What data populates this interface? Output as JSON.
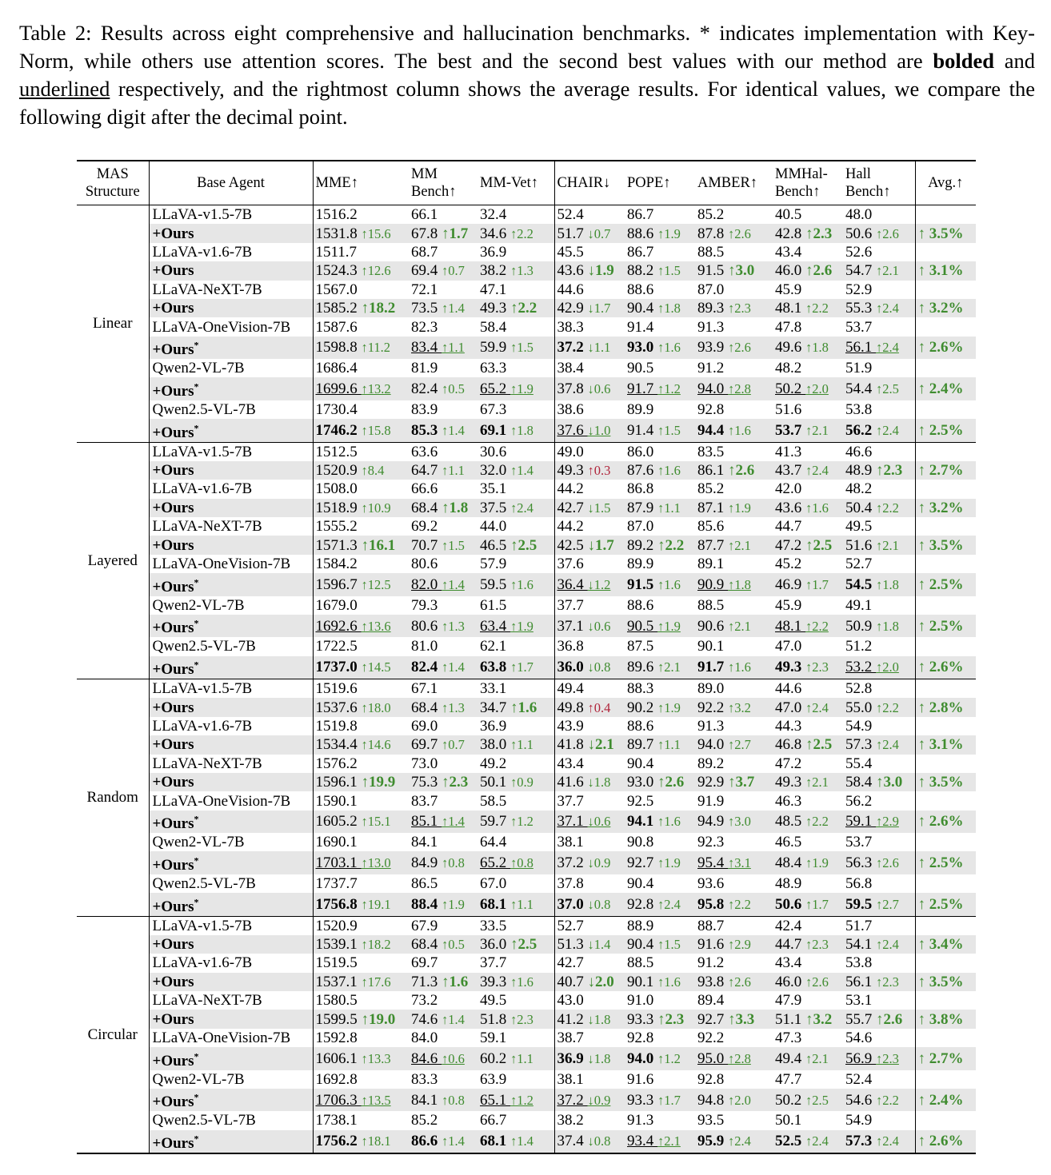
{
  "caption": {
    "part1": "Table 2: Results across eight comprehensive and hallucination benchmarks. * indicates implementation with Key-Norm, while others use attention scores. The best and the second best values with our method are ",
    "bolded": "bolded",
    "part2": " and ",
    "underlined": "underlined",
    "part3": " respectively, and the rightmost column shows the average results. For identical values, we compare the following digit after the decimal point."
  },
  "headers": [
    "MAS Structure",
    "Base Agent",
    "MME↑",
    "MM Bench↑",
    "MM-Vet↑",
    "CHAIR↓",
    "POPE↑",
    "AMBER↑",
    "MMHal-Bench↑",
    "Hall Bench↑",
    "Avg.↑"
  ],
  "groups": [
    {
      "structure": "Linear",
      "rows": [
        {
          "agent": "LLaVA-v1.5-7B",
          "vals": [
            "1516.2",
            "66.1",
            "32.4",
            "52.4",
            "86.7",
            "85.2",
            "40.5",
            "48.0"
          ],
          "avg": ""
        },
        {
          "agent": "+Ours",
          "vals": [
            "1531.8 ↑15.6",
            "67.8 ↑1.7",
            "34.6 ↑2.2",
            "51.7 ↓0.7",
            "88.6 ↑1.9",
            "87.8 ↑2.6",
            "42.8 ↑2.3",
            "50.6 ↑2.6"
          ],
          "avg": "↑ 3.5%"
        },
        {
          "agent": "LLaVA-v1.6-7B",
          "vals": [
            "1511.7",
            "68.7",
            "36.9",
            "45.5",
            "86.7",
            "88.5",
            "43.4",
            "52.6"
          ],
          "avg": ""
        },
        {
          "agent": "+Ours",
          "vals": [
            "1524.3 ↑12.6",
            "69.4 ↑0.7",
            "38.2 ↑1.3",
            "43.6 ↓1.9",
            "88.2 ↑1.5",
            "91.5 ↑3.0",
            "46.0 ↑2.6",
            "54.7 ↑2.1"
          ],
          "avg": "↑ 3.1%"
        },
        {
          "agent": "LLaVA-NeXT-7B",
          "vals": [
            "1567.0",
            "72.1",
            "47.1",
            "44.6",
            "88.6",
            "87.0",
            "45.9",
            "52.9"
          ],
          "avg": ""
        },
        {
          "agent": "+Ours",
          "vals": [
            "1585.2 ↑18.2",
            "73.5 ↑1.4",
            "49.3 ↑2.2",
            "42.9 ↓1.7",
            "90.4 ↑1.8",
            "89.3 ↑2.3",
            "48.1 ↑2.2",
            "55.3 ↑2.4"
          ],
          "avg": "↑ 3.2%"
        },
        {
          "agent": "LLaVA-OneVision-7B",
          "vals": [
            "1587.6",
            "82.3",
            "58.4",
            "38.3",
            "91.4",
            "91.3",
            "47.8",
            "53.7"
          ],
          "avg": ""
        },
        {
          "agent": "+Ours*",
          "vals": [
            "1598.8 ↑11.2",
            "83.4 ↑1.1",
            "59.9 ↑1.5",
            "37.2 ↓1.1",
            "93.0 ↑1.6",
            "93.9 ↑2.6",
            "49.6 ↑1.8",
            "56.1 ↑2.4"
          ],
          "avg": "↑ 2.6%"
        },
        {
          "agent": "Qwen2-VL-7B",
          "vals": [
            "1686.4",
            "81.9",
            "63.3",
            "38.4",
            "90.5",
            "91.2",
            "48.2",
            "51.9"
          ],
          "avg": ""
        },
        {
          "agent": "+Ours*",
          "vals": [
            "1699.6 ↑13.2",
            "82.4 ↑0.5",
            "65.2 ↑1.9",
            "37.8 ↓0.6",
            "91.7 ↑1.2",
            "94.0 ↑2.8",
            "50.2 ↑2.0",
            "54.4 ↑2.5"
          ],
          "avg": "↑ 2.4%"
        },
        {
          "agent": "Qwen2.5-VL-7B",
          "vals": [
            "1730.4",
            "83.9",
            "67.3",
            "38.6",
            "89.9",
            "92.8",
            "51.6",
            "53.8"
          ],
          "avg": ""
        },
        {
          "agent": "+Ours*",
          "vals": [
            "1746.2 ↑15.8",
            "85.3 ↑1.4",
            "69.1 ↑1.8",
            "37.6 ↓1.0",
            "91.4 ↑1.5",
            "94.4 ↑1.6",
            "53.7 ↑2.1",
            "56.2 ↑2.4"
          ],
          "avg": "↑ 2.5%"
        }
      ]
    },
    {
      "structure": "Layered",
      "rows": [
        {
          "agent": "LLaVA-v1.5-7B",
          "vals": [
            "1512.5",
            "63.6",
            "30.6",
            "49.0",
            "86.0",
            "83.5",
            "41.3",
            "46.6"
          ],
          "avg": ""
        },
        {
          "agent": "+Ours",
          "vals": [
            "1520.9 ↑8.4",
            "64.7 ↑1.1",
            "32.0 ↑1.4",
            "49.3 ↑0.3",
            "87.6 ↑1.6",
            "86.1 ↑2.6",
            "43.7 ↑2.4",
            "48.9 ↑2.3"
          ],
          "avg": "↑ 2.7%"
        },
        {
          "agent": "LLaVA-v1.6-7B",
          "vals": [
            "1508.0",
            "66.6",
            "35.1",
            "44.2",
            "86.8",
            "85.2",
            "42.0",
            "48.2"
          ],
          "avg": ""
        },
        {
          "agent": "+Ours",
          "vals": [
            "1518.9 ↑10.9",
            "68.4 ↑1.8",
            "37.5 ↑2.4",
            "42.7 ↓1.5",
            "87.9 ↑1.1",
            "87.1 ↑1.9",
            "43.6 ↑1.6",
            "50.4 ↑2.2"
          ],
          "avg": "↑ 3.2%"
        },
        {
          "agent": "LLaVA-NeXT-7B",
          "vals": [
            "1555.2",
            "69.2",
            "44.0",
            "44.2",
            "87.0",
            "85.6",
            "44.7",
            "49.5"
          ],
          "avg": ""
        },
        {
          "agent": "+Ours",
          "vals": [
            "1571.3 ↑16.1",
            "70.7 ↑1.5",
            "46.5 ↑2.5",
            "42.5 ↓1.7",
            "89.2 ↑2.2",
            "87.7 ↑2.1",
            "47.2 ↑2.5",
            "51.6 ↑2.1"
          ],
          "avg": "↑ 3.5%"
        },
        {
          "agent": "LLaVA-OneVision-7B",
          "vals": [
            "1584.2",
            "80.6",
            "57.9",
            "37.6",
            "89.9",
            "89.1",
            "45.2",
            "52.7"
          ],
          "avg": ""
        },
        {
          "agent": "+Ours*",
          "vals": [
            "1596.7 ↑12.5",
            "82.0 ↑1.4",
            "59.5 ↑1.6",
            "36.4 ↓1.2",
            "91.5 ↑1.6",
            "90.9 ↑1.8",
            "46.9 ↑1.7",
            "54.5 ↑1.8"
          ],
          "avg": "↑ 2.5%"
        },
        {
          "agent": "Qwen2-VL-7B",
          "vals": [
            "1679.0",
            "79.3",
            "61.5",
            "37.7",
            "88.6",
            "88.5",
            "45.9",
            "49.1"
          ],
          "avg": ""
        },
        {
          "agent": "+Ours*",
          "vals": [
            "1692.6 ↑13.6",
            "80.6 ↑1.3",
            "63.4 ↑1.9",
            "37.1 ↓0.6",
            "90.5 ↑1.9",
            "90.6 ↑2.1",
            "48.1 ↑2.2",
            "50.9 ↑1.8"
          ],
          "avg": "↑ 2.5%"
        },
        {
          "agent": "Qwen2.5-VL-7B",
          "vals": [
            "1722.5",
            "81.0",
            "62.1",
            "36.8",
            "87.5",
            "90.1",
            "47.0",
            "51.2"
          ],
          "avg": ""
        },
        {
          "agent": "+Ours*",
          "vals": [
            "1737.0 ↑14.5",
            "82.4 ↑1.4",
            "63.8 ↑1.7",
            "36.0 ↓0.8",
            "89.6 ↑2.1",
            "91.7 ↑1.6",
            "49.3 ↑2.3",
            "53.2 ↑2.0"
          ],
          "avg": "↑ 2.6%"
        }
      ]
    },
    {
      "structure": "Random",
      "rows": [
        {
          "agent": "LLaVA-v1.5-7B",
          "vals": [
            "1519.6",
            "67.1",
            "33.1",
            "49.4",
            "88.3",
            "89.0",
            "44.6",
            "52.8"
          ],
          "avg": ""
        },
        {
          "agent": "+Ours",
          "vals": [
            "1537.6 ↑18.0",
            "68.4 ↑1.3",
            "34.7 ↑1.6",
            "49.8 ↑0.4",
            "90.2 ↑1.9",
            "92.2 ↑3.2",
            "47.0 ↑2.4",
            "55.0 ↑2.2"
          ],
          "avg": "↑ 2.8%"
        },
        {
          "agent": "LLaVA-v1.6-7B",
          "vals": [
            "1519.8",
            "69.0",
            "36.9",
            "43.9",
            "88.6",
            "91.3",
            "44.3",
            "54.9"
          ],
          "avg": ""
        },
        {
          "agent": "+Ours",
          "vals": [
            "1534.4 ↑14.6",
            "69.7 ↑0.7",
            "38.0 ↑1.1",
            "41.8 ↓2.1",
            "89.7 ↑1.1",
            "94.0 ↑2.7",
            "46.8 ↑2.5",
            "57.3 ↑2.4"
          ],
          "avg": "↑ 3.1%"
        },
        {
          "agent": "LLaVA-NeXT-7B",
          "vals": [
            "1576.2",
            "73.0",
            "49.2",
            "43.4",
            "90.4",
            "89.2",
            "47.2",
            "55.4"
          ],
          "avg": ""
        },
        {
          "agent": "+Ours",
          "vals": [
            "1596.1 ↑19.9",
            "75.3 ↑2.3",
            "50.1 ↑0.9",
            "41.6 ↓1.8",
            "93.0 ↑2.6",
            "92.9 ↑3.7",
            "49.3 ↑2.1",
            "58.4 ↑3.0"
          ],
          "avg": "↑ 3.5%"
        },
        {
          "agent": "LLaVA-OneVision-7B",
          "vals": [
            "1590.1",
            "83.7",
            "58.5",
            "37.7",
            "92.5",
            "91.9",
            "46.3",
            "56.2"
          ],
          "avg": ""
        },
        {
          "agent": "+Ours*",
          "vals": [
            "1605.2 ↑15.1",
            "85.1 ↑1.4",
            "59.7 ↑1.2",
            "37.1 ↓0.6",
            "94.1 ↑1.6",
            "94.9 ↑3.0",
            "48.5 ↑2.2",
            "59.1 ↑2.9"
          ],
          "avg": "↑ 2.6%"
        },
        {
          "agent": "Qwen2-VL-7B",
          "vals": [
            "1690.1",
            "84.1",
            "64.4",
            "38.1",
            "90.8",
            "92.3",
            "46.5",
            "53.7"
          ],
          "avg": ""
        },
        {
          "agent": "+Ours*",
          "vals": [
            "1703.1 ↑13.0",
            "84.9 ↑0.8",
            "65.2 ↑0.8",
            "37.2 ↓0.9",
            "92.7 ↑1.9",
            "95.4 ↑3.1",
            "48.4 ↑1.9",
            "56.3 ↑2.6"
          ],
          "avg": "↑ 2.5%"
        },
        {
          "agent": "Qwen2.5-VL-7B",
          "vals": [
            "1737.7",
            "86.5",
            "67.0",
            "37.8",
            "90.4",
            "93.6",
            "48.9",
            "56.8"
          ],
          "avg": ""
        },
        {
          "agent": "+Ours*",
          "vals": [
            "1756.8 ↑19.1",
            "88.4 ↑1.9",
            "68.1 ↑1.1",
            "37.0 ↓0.8",
            "92.8 ↑2.4",
            "95.8 ↑2.2",
            "50.6 ↑1.7",
            "59.5 ↑2.7"
          ],
          "avg": "↑ 2.5%"
        }
      ]
    },
    {
      "structure": "Circular",
      "rows": [
        {
          "agent": "LLaVA-v1.5-7B",
          "vals": [
            "1520.9",
            "67.9",
            "33.5",
            "52.7",
            "88.9",
            "88.7",
            "42.4",
            "51.7"
          ],
          "avg": ""
        },
        {
          "agent": "+Ours",
          "vals": [
            "1539.1 ↑18.2",
            "68.4 ↑0.5",
            "36.0 ↑2.5",
            "51.3 ↓1.4",
            "90.4 ↑1.5",
            "91.6 ↑2.9",
            "44.7 ↑2.3",
            "54.1 ↑2.4"
          ],
          "avg": "↑ 3.4%"
        },
        {
          "agent": "LLaVA-v1.6-7B",
          "vals": [
            "1519.5",
            "69.7",
            "37.7",
            "42.7",
            "88.5",
            "91.2",
            "43.4",
            "53.8"
          ],
          "avg": ""
        },
        {
          "agent": "+Ours",
          "vals": [
            "1537.1 ↑17.6",
            "71.3 ↑1.6",
            "39.3 ↑1.6",
            "40.7 ↓2.0",
            "90.1 ↑1.6",
            "93.8 ↑2.6",
            "46.0 ↑2.6",
            "56.1 ↑2.3"
          ],
          "avg": "↑ 3.5%"
        },
        {
          "agent": "LLaVA-NeXT-7B",
          "vals": [
            "1580.5",
            "73.2",
            "49.5",
            "43.0",
            "91.0",
            "89.4",
            "47.9",
            "53.1"
          ],
          "avg": ""
        },
        {
          "agent": "+Ours",
          "vals": [
            "1599.5 ↑19.0",
            "74.6 ↑1.4",
            "51.8 ↑2.3",
            "41.2 ↓1.8",
            "93.3 ↑2.3",
            "92.7 ↑3.3",
            "51.1 ↑3.2",
            "55.7 ↑2.6"
          ],
          "avg": "↑ 3.8%"
        },
        {
          "agent": "LLaVA-OneVision-7B",
          "vals": [
            "1592.8",
            "84.0",
            "59.1",
            "38.7",
            "92.8",
            "92.2",
            "47.3",
            "54.6"
          ],
          "avg": ""
        },
        {
          "agent": "+Ours*",
          "vals": [
            "1606.1 ↑13.3",
            "84.6 ↑0.6",
            "60.2 ↑1.1",
            "36.9 ↓1.8",
            "94.0 ↑1.2",
            "95.0 ↑2.8",
            "49.4 ↑2.1",
            "56.9 ↑2.3"
          ],
          "avg": "↑ 2.7%"
        },
        {
          "agent": "Qwen2-VL-7B",
          "vals": [
            "1692.8",
            "83.3",
            "63.9",
            "38.1",
            "91.6",
            "92.8",
            "47.7",
            "52.4"
          ],
          "avg": ""
        },
        {
          "agent": "+Ours*",
          "vals": [
            "1706.3 ↑13.5",
            "84.1 ↑0.8",
            "65.1 ↑1.2",
            "37.2 ↓0.9",
            "93.3 ↑1.7",
            "94.8 ↑2.0",
            "50.2 ↑2.5",
            "54.6 ↑2.2"
          ],
          "avg": "↑ 2.4%"
        },
        {
          "agent": "Qwen2.5-VL-7B",
          "vals": [
            "1738.1",
            "85.2",
            "66.7",
            "38.2",
            "91.3",
            "93.5",
            "50.1",
            "54.9"
          ],
          "avg": ""
        },
        {
          "agent": "+Ours*",
          "vals": [
            "1756.2 ↑18.1",
            "86.6 ↑1.4",
            "68.1 ↑1.4",
            "37.4 ↓0.8",
            "93.4 ↑2.1",
            "95.9 ↑2.4",
            "52.5 ↑2.4",
            "57.3 ↑2.4"
          ],
          "avg": "↑ 2.6%"
        }
      ]
    }
  ],
  "colors": {
    "gain": "#3f8c2f",
    "loss": "#b0243a",
    "shade": "#e6e6e6"
  }
}
